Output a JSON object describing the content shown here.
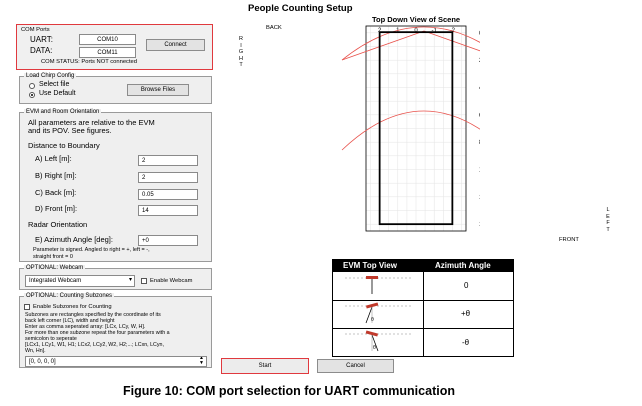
{
  "window": {
    "title": "People Counting Setup"
  },
  "com_ports": {
    "group_title": "COM Ports",
    "uart_label": "UART:",
    "uart_value": "COM10",
    "data_label": "DATA:",
    "data_value": "COM11",
    "connect_label": "Connect",
    "status": "COM STATUS: Ports NOT connected"
  },
  "chirp": {
    "group_title": "Load Chirp Config",
    "select_file": "Select file",
    "use_default": "Use Default",
    "selected": "Use Default",
    "browse_label": "Browse Files"
  },
  "evm": {
    "group_title": "EVM and Room Orientation",
    "intro": [
      "All parameters are relative to the EVM",
      "and its POV.  See figures."
    ],
    "distance_heading": "Distance to Boundary",
    "fields": [
      {
        "label": "A) Left [m]:",
        "value": "2"
      },
      {
        "label": "B) Right [m]:",
        "value": "2"
      },
      {
        "label": "C) Back [m]:",
        "value": "0.05"
      },
      {
        "label": "D) Front [m]:",
        "value": "14"
      }
    ],
    "radar_heading": "Radar Orientation",
    "azimuth_label": "E) Azimuth Angle [deg]:",
    "azimuth_value": "+0",
    "note": [
      "Parameter is signed. Angled to right = +, left = -,",
      "straight front = 0"
    ]
  },
  "webcam": {
    "group_title": "OPTIONAL: Webcam",
    "selected": "Integrated Webcam",
    "enable_label": "Enable Webcam"
  },
  "subzones": {
    "group_title": "OPTIONAL: Counting Subzones",
    "enable_label": "Enable Subzones for Counting",
    "desc": [
      "Subzones are rectangles specified by the coordinate of its",
      "back left corner (LC), width and height",
      "Enter as comma seperated array: [LCx, LCy, W, H].",
      "For more than one subzone repeat the four parameters with a",
      "semicolon to seperate",
      "[LCx1, LCy1, W1, H1; LCx2, LCy2, W2, H2;...; LCxn, LCyn,",
      "Wn, Hn]."
    ],
    "input_value": "[0, 0, 0, 0]"
  },
  "buttons": {
    "start": "Start",
    "cancel": "Cancel"
  },
  "plot": {
    "title": "Top Down View of Scene",
    "back_label": "BACK",
    "front_label": "FRONT",
    "right_label": "RIGHT",
    "left_label": "LEFT",
    "x_ticks": [
      "2",
      "1",
      "0",
      "-1",
      "-2"
    ],
    "y_ticks": [
      "0",
      "2",
      "4",
      "6",
      "8",
      "10",
      "12",
      "14"
    ],
    "boundary": {
      "left": 2,
      "right": 2,
      "back": 0.05,
      "front": 14
    }
  },
  "legend_table": {
    "headers": [
      "EVM Top View",
      "Azimuth Angle"
    ],
    "rows": [
      "0",
      "+θ",
      "-θ"
    ],
    "theta_symbol": "θ"
  },
  "caption": "Figure 10: COM port selection for UART communication",
  "colors": {
    "highlight": "#e0393e",
    "arc": "#e8504a",
    "table_header": "#000000"
  }
}
